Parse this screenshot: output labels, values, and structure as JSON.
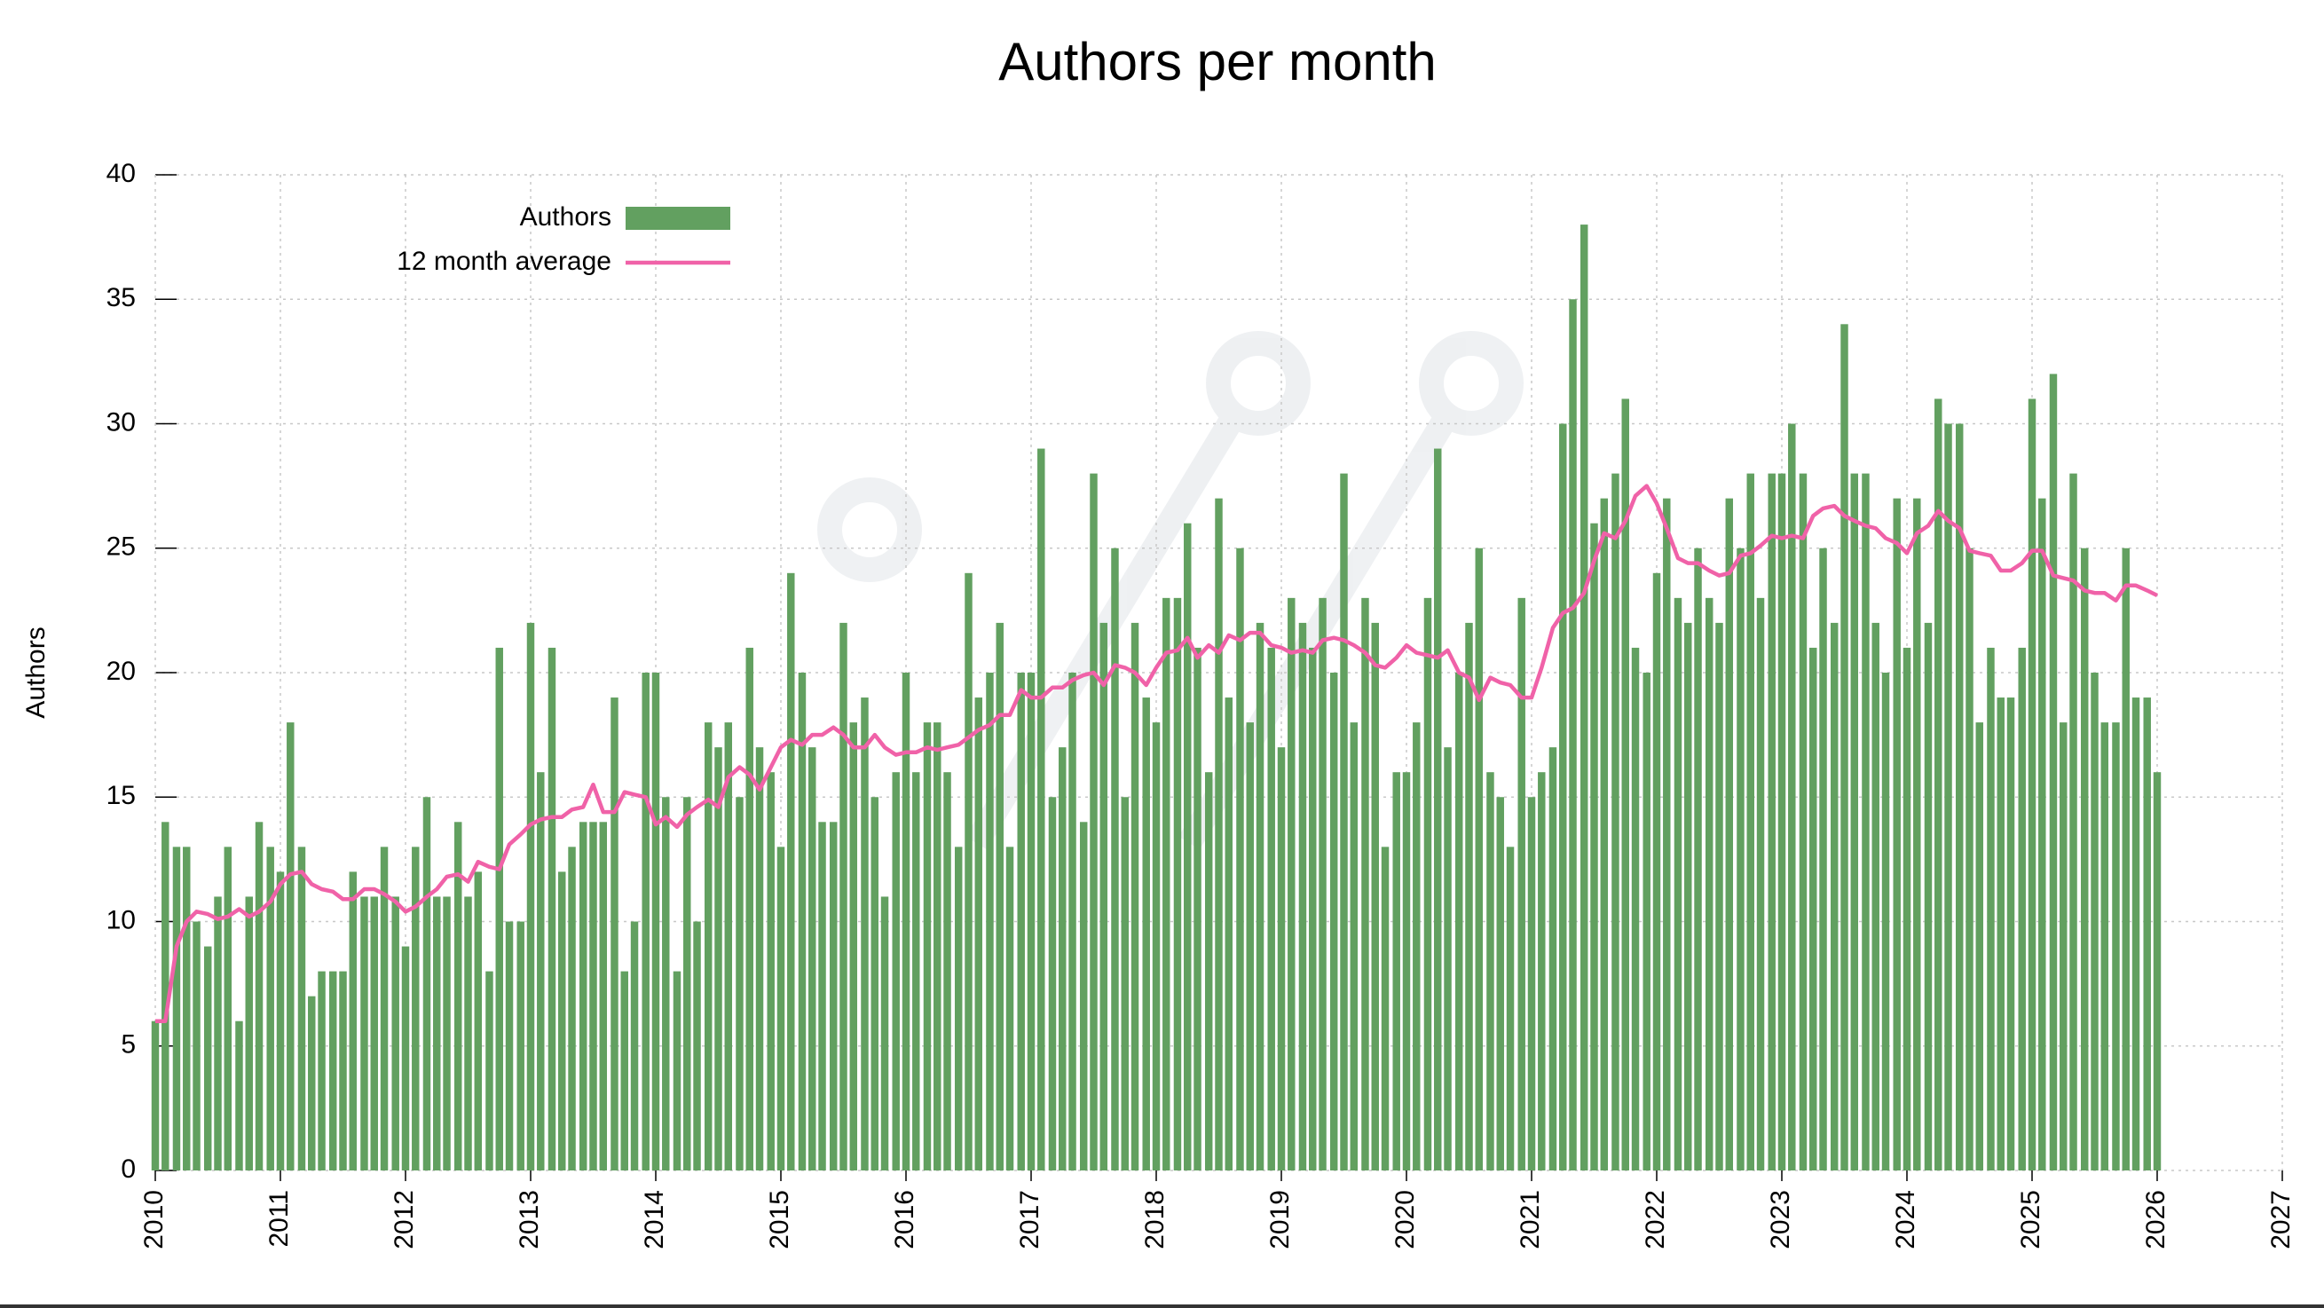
{
  "chart_data": {
    "type": "bar",
    "title": "Authors per month",
    "y_label": "Authors",
    "x": [
      2010,
      2010.08,
      2010.17,
      2010.25,
      2010.33,
      2010.42,
      2010.5,
      2010.58,
      2010.67,
      2010.75,
      2010.83,
      2010.92,
      2011,
      2011.08,
      2011.17,
      2011.25,
      2011.33,
      2011.42,
      2011.5,
      2011.58,
      2011.67,
      2011.75,
      2011.83,
      2011.92,
      2012,
      2012.08,
      2012.17,
      2012.25,
      2012.33,
      2012.42,
      2012.5,
      2012.58,
      2012.67,
      2012.75,
      2012.83,
      2012.92,
      2013,
      2013.08,
      2013.17,
      2013.25,
      2013.33,
      2013.42,
      2013.5,
      2013.58,
      2013.67,
      2013.75,
      2013.83,
      2013.92,
      2014,
      2014.08,
      2014.17,
      2014.25,
      2014.33,
      2014.42,
      2014.5,
      2014.58,
      2014.67,
      2014.75,
      2014.83,
      2014.92,
      2015,
      2015.08,
      2015.17,
      2015.25,
      2015.33,
      2015.42,
      2015.5,
      2015.58,
      2015.67,
      2015.75,
      2015.83,
      2015.92,
      2016,
      2016.08,
      2016.17,
      2016.25,
      2016.33,
      2016.42,
      2016.5,
      2016.58,
      2016.67,
      2016.75,
      2016.83,
      2016.92,
      2017,
      2017.08,
      2017.17,
      2017.25,
      2017.33,
      2017.42,
      2017.5,
      2017.58,
      2017.67,
      2017.75,
      2017.83,
      2017.92,
      2018,
      2018.08,
      2018.17,
      2018.25,
      2018.33,
      2018.42,
      2018.5,
      2018.58,
      2018.67,
      2018.75,
      2018.83,
      2018.92,
      2019,
      2019.08,
      2019.17,
      2019.25,
      2019.33,
      2019.42,
      2019.5,
      2019.58,
      2019.67,
      2019.75,
      2019.83,
      2019.92,
      2020,
      2020.08,
      2020.17,
      2020.25,
      2020.33,
      2020.42,
      2020.5,
      2020.58,
      2020.67,
      2020.75,
      2020.83,
      2020.92,
      2021,
      2021.08,
      2021.17,
      2021.25,
      2021.33,
      2021.42,
      2021.5,
      2021.58,
      2021.67,
      2021.75,
      2021.83,
      2021.92,
      2022,
      2022.08,
      2022.17,
      2022.25,
      2022.33,
      2022.42,
      2022.5,
      2022.58,
      2022.67,
      2022.75,
      2022.83,
      2022.92,
      2023,
      2023.08,
      2023.17,
      2023.25,
      2023.33,
      2023.42,
      2023.5,
      2023.58,
      2023.67,
      2023.75,
      2023.83,
      2023.92,
      2024,
      2024.08,
      2024.17,
      2024.25,
      2024.33,
      2024.42,
      2024.5,
      2024.58,
      2024.67,
      2024.75,
      2024.83,
      2024.92,
      2025,
      2025.08,
      2025.17,
      2025.25,
      2025.33,
      2025.42,
      2025.5,
      2025.58,
      2025.67,
      2025.75,
      2025.83,
      2025.92,
      2026
    ],
    "series": [
      {
        "name": "Authors",
        "type": "bar",
        "color": "#62a060",
        "values": [
          6,
          14,
          13,
          13,
          10,
          9,
          11,
          13,
          6,
          11,
          14,
          13,
          12,
          18,
          13,
          7,
          8,
          8,
          8,
          12,
          11,
          11,
          13,
          11,
          9,
          13,
          15,
          11,
          11,
          14,
          11,
          12,
          8,
          21,
          10,
          10,
          22,
          16,
          21,
          12,
          13,
          14,
          14,
          14,
          19,
          8,
          10,
          20,
          20,
          15,
          8,
          15,
          10,
          18,
          17,
          18,
          15,
          21,
          17,
          16,
          13,
          24,
          20,
          17,
          14,
          14,
          22,
          18,
          19,
          15,
          11,
          16,
          20,
          16,
          18,
          18,
          16,
          13,
          24,
          19,
          20,
          22,
          13,
          20,
          20,
          29,
          15,
          17,
          20,
          14,
          28,
          22,
          25,
          15,
          22,
          19,
          18,
          23,
          23,
          26,
          21,
          16,
          27,
          19,
          25,
          18,
          22,
          21,
          17,
          23,
          22,
          21,
          23,
          20,
          28,
          18,
          23,
          22,
          13,
          16,
          16,
          18,
          23,
          29,
          17,
          20,
          22,
          25,
          16,
          15,
          13,
          23,
          15,
          16,
          17,
          30,
          35,
          38,
          26,
          27,
          28,
          31,
          21,
          20,
          24,
          27,
          23,
          22,
          25,
          23,
          22,
          27,
          25,
          28,
          23,
          28,
          28,
          30,
          28,
          21,
          25,
          22,
          34,
          28,
          28,
          22,
          20,
          27,
          21,
          27,
          22,
          31,
          30,
          30,
          25,
          18,
          21,
          19,
          19,
          21,
          31,
          27,
          32,
          18,
          28,
          25,
          20,
          18,
          18,
          25,
          19,
          19,
          16
        ]
      },
      {
        "name": "12 month average",
        "type": "line",
        "color": "#f062a8",
        "values": [
          6,
          6,
          9,
          10,
          10.4,
          10.3,
          10.1,
          10.2,
          10.5,
          10.2,
          10.4,
          10.8,
          11.5,
          11.9,
          12,
          11.5,
          11.3,
          11.2,
          10.9,
          10.9,
          11.3,
          11.3,
          11.1,
          10.8,
          10.4,
          10.6,
          11,
          11.3,
          11.8,
          11.9,
          11.6,
          12.4,
          12.2,
          12.1,
          13.1,
          13.5,
          13.9,
          14.1,
          14.2,
          14.2,
          14.5,
          14.6,
          15.5,
          14.4,
          14.4,
          15.2,
          15.1,
          15,
          13.9,
          14.2,
          13.8,
          14.3,
          14.6,
          14.9,
          14.6,
          15.8,
          16.2,
          15.9,
          15.3,
          16.2,
          17,
          17.3,
          17.1,
          17.5,
          17.5,
          17.8,
          17.5,
          17,
          17,
          17.5,
          17,
          16.7,
          16.8,
          16.8,
          17,
          16.9,
          17,
          17.1,
          17.4,
          17.7,
          17.9,
          18.3,
          18.3,
          19.3,
          19,
          19,
          19.4,
          19.4,
          19.7,
          19.9,
          20,
          19.5,
          20.3,
          20.2,
          20,
          19.5,
          20.2,
          20.8,
          20.9,
          21.4,
          20.6,
          21.1,
          20.8,
          21.5,
          21.3,
          21.6,
          21.6,
          21.1,
          21,
          20.8,
          20.9,
          20.8,
          21.3,
          21.4,
          21.3,
          21.1,
          20.8,
          20.3,
          20.2,
          20.6,
          21.1,
          20.8,
          20.7,
          20.6,
          20.9,
          20,
          19.8,
          18.9,
          19.8,
          19.6,
          19.5,
          19,
          19,
          20.2,
          21.8,
          22.4,
          22.6,
          23.2,
          24.5,
          25.6,
          25.4,
          26.1,
          27.1,
          27.5,
          26.8,
          25.8,
          24.6,
          24.4,
          24.4,
          24.1,
          23.9,
          24,
          24.7,
          24.8,
          25.1,
          25.5,
          25.4,
          25.5,
          25.4,
          26.3,
          26.6,
          26.7,
          26.3,
          26.1,
          25.9,
          25.8,
          25.4,
          25.2,
          24.8,
          25.6,
          25.9,
          26.5,
          26.1,
          25.8,
          24.9,
          24.8,
          24.7,
          24.1,
          24.1,
          24.4,
          24.9,
          24.9,
          23.9,
          23.8,
          23.7,
          23.3,
          23.2,
          23.2,
          22.9,
          23.5,
          23.5,
          23.3,
          23.1
        ]
      }
    ],
    "xlim": [
      2010,
      2027
    ],
    "xticks": [
      2010,
      2011,
      2012,
      2013,
      2014,
      2015,
      2016,
      2017,
      2018,
      2019,
      2020,
      2021,
      2022,
      2023,
      2024,
      2025,
      2026,
      2027
    ],
    "ylim": [
      0,
      40
    ],
    "yticks": [
      0,
      5,
      10,
      15,
      20,
      25,
      30,
      35,
      40
    ],
    "grid": true,
    "legend": "upper left"
  }
}
